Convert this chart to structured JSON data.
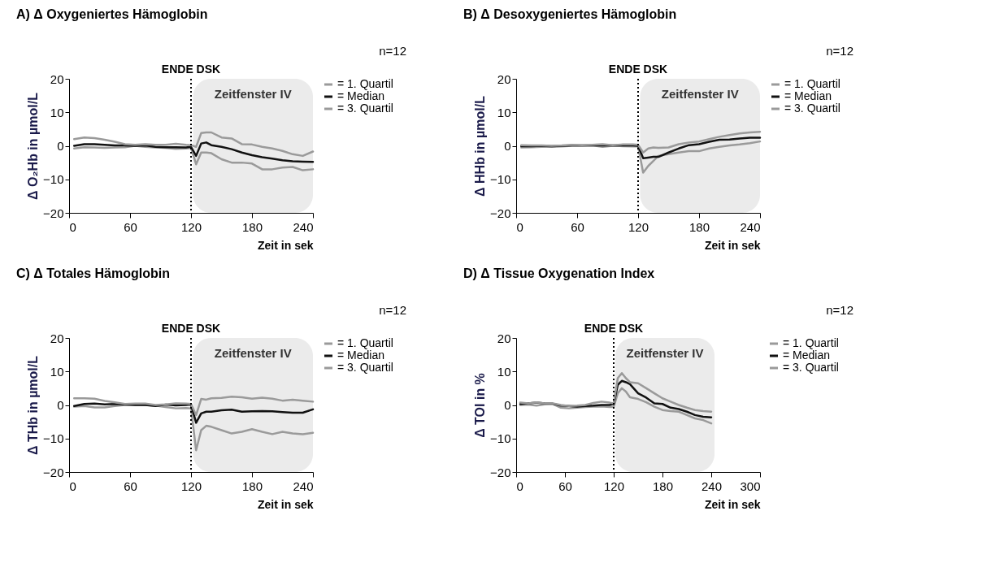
{
  "chart_data": [
    {
      "type": "line",
      "title": "A) Δ Oxygeniertes Hämoglobin",
      "xlabel": "Zeit in sek",
      "ylabel": "Δ O₂Hb in µmol/L",
      "annotations": [
        "n=12"
      ],
      "x": [
        5,
        15,
        25,
        35,
        45,
        55,
        65,
        75,
        85,
        95,
        105,
        115,
        120,
        125,
        130,
        135,
        140,
        150,
        160,
        170,
        180,
        190,
        200,
        210,
        220,
        230,
        240
      ],
      "xlim": [
        0,
        240
      ],
      "xticks": [
        0,
        60,
        120,
        180,
        240
      ],
      "ylim": [
        -20,
        20
      ],
      "yticks": [
        -20,
        -10,
        0,
        10,
        20
      ],
      "legend": "right",
      "ref_lines": [
        {
          "axis": "x",
          "value": 120,
          "label": "ENDE DSK",
          "color": "#000000",
          "line_style": "dotted"
        }
      ],
      "bands": [
        {
          "axis": "x",
          "from": 122,
          "to": 240,
          "label": "Zeitfenster IV",
          "color": "#ebebeb"
        }
      ],
      "series": [
        {
          "name": "= 1. Quartil",
          "color": "#9a9a9a",
          "values": [
            -0.8,
            -0.4,
            -0.5,
            -0.6,
            -0.5,
            -0.4,
            0,
            -0.3,
            -0.5,
            -0.6,
            -0.9,
            -0.8,
            -0.6,
            -5.5,
            -2,
            -2,
            -2.2,
            -4,
            -5,
            -5,
            -5.3,
            -7,
            -7,
            -6.5,
            -6.3,
            -7.3,
            -7
          ]
        },
        {
          "name": "= Median",
          "color": "#111111",
          "values": [
            0,
            0.5,
            0.5,
            0.3,
            0.1,
            0.1,
            0,
            0.1,
            -0.3,
            -0.4,
            -0.4,
            -0.5,
            -0.3,
            -3,
            0.7,
            1,
            0.2,
            -0.3,
            -1,
            -2,
            -2.8,
            -3.4,
            -3.8,
            -4.3,
            -4.6,
            -4.7,
            -4.8
          ]
        },
        {
          "name": "= 3. Quartil",
          "color": "#9a9a9a",
          "values": [
            2,
            2.5,
            2.3,
            1.8,
            1.2,
            0.5,
            0.3,
            0.5,
            0.3,
            0.3,
            0.6,
            0.3,
            0.2,
            -0.3,
            3.8,
            4,
            4,
            2.5,
            2.2,
            0.5,
            0.4,
            -0.3,
            -0.8,
            -1.5,
            -2.5,
            -3,
            -1.7
          ]
        }
      ]
    },
    {
      "type": "line",
      "title": "B) Δ Desoxygeniertes Hämoglobin",
      "xlabel": "Zeit in sek",
      "ylabel": "Δ HHb in µmol/L",
      "annotations": [
        "n=12"
      ],
      "x": [
        5,
        15,
        25,
        35,
        45,
        55,
        65,
        75,
        85,
        95,
        105,
        115,
        120,
        125,
        130,
        135,
        140,
        150,
        160,
        170,
        180,
        190,
        200,
        210,
        220,
        230,
        240
      ],
      "xlim": [
        0,
        240
      ],
      "xticks": [
        0,
        60,
        120,
        180,
        240
      ],
      "ylim": [
        -20,
        20
      ],
      "yticks": [
        -20,
        -10,
        0,
        10,
        20
      ],
      "legend": "right",
      "ref_lines": [
        {
          "axis": "x",
          "value": 120,
          "label": "ENDE DSK",
          "color": "#000000",
          "line_style": "dotted"
        }
      ],
      "bands": [
        {
          "axis": "x",
          "from": 122,
          "to": 240,
          "label": "Zeitfenster IV",
          "color": "#ebebeb"
        }
      ],
      "series": [
        {
          "name": "= 1. Quartil",
          "color": "#9a9a9a",
          "values": [
            -0.5,
            -0.4,
            -0.3,
            -0.3,
            -0.2,
            0,
            0,
            0.1,
            -0.3,
            0,
            -0.1,
            -0.2,
            -0.2,
            -8,
            -6,
            -4.5,
            -3,
            -2.5,
            -2,
            -1.6,
            -1.6,
            -0.8,
            -0.3,
            0.1,
            0.4,
            0.8,
            1.3
          ]
        },
        {
          "name": "= Median",
          "color": "#111111",
          "values": [
            -0.1,
            -0.1,
            0,
            -0.1,
            0,
            0.1,
            0.1,
            0.1,
            0.1,
            0.1,
            0.1,
            0.1,
            0,
            -3.7,
            -3.5,
            -3.3,
            -3.3,
            -2,
            -0.8,
            0.2,
            0.5,
            1.2,
            1.8,
            1.9,
            2.2,
            2.4,
            2.4
          ]
        },
        {
          "name": "= 3. Quartil",
          "color": "#9a9a9a",
          "values": [
            0.2,
            0.1,
            0.1,
            0,
            0.1,
            0.3,
            0.2,
            0.3,
            0.5,
            0.2,
            0.4,
            0.4,
            0.3,
            -2,
            -0.8,
            -0.5,
            -0.6,
            -0.5,
            0.5,
            1,
            1.3,
            2,
            2.7,
            3.2,
            3.7,
            4,
            4.2
          ]
        }
      ]
    },
    {
      "type": "line",
      "title": "C) Δ Totales Hämoglobin",
      "xlabel": "Zeit in sek",
      "ylabel": "Δ THb in µmol/L",
      "annotations": [
        "n=12"
      ],
      "x": [
        5,
        15,
        25,
        35,
        45,
        55,
        65,
        75,
        85,
        95,
        105,
        115,
        120,
        125,
        130,
        135,
        140,
        150,
        160,
        170,
        180,
        190,
        200,
        210,
        220,
        230,
        240
      ],
      "xlim": [
        0,
        240
      ],
      "xticks": [
        0,
        60,
        120,
        180,
        240
      ],
      "ylim": [
        -20,
        20
      ],
      "yticks": [
        -20,
        -10,
        0,
        10,
        20
      ],
      "legend": "right",
      "ref_lines": [
        {
          "axis": "x",
          "value": 120,
          "label": "ENDE DSK",
          "color": "#000000",
          "line_style": "dotted"
        }
      ],
      "bands": [
        {
          "axis": "x",
          "from": 122,
          "to": 240,
          "label": "Zeitfenster IV",
          "color": "#ebebeb"
        }
      ],
      "series": [
        {
          "name": "= 1. Quartil",
          "color": "#9a9a9a",
          "values": [
            -0.5,
            -0.3,
            -0.7,
            -0.7,
            -0.3,
            0,
            0.1,
            0,
            -0.2,
            -0.6,
            -1,
            -0.9,
            -1,
            -13.5,
            -7.5,
            -6.2,
            -6.5,
            -7.5,
            -8.5,
            -8,
            -7.2,
            -8,
            -8.7,
            -8,
            -8.5,
            -8.7,
            -8.3
          ]
        },
        {
          "name": "= Median",
          "color": "#111111",
          "values": [
            -0.3,
            0.3,
            0.4,
            0.2,
            0.3,
            0.1,
            0,
            0,
            -0.3,
            0.1,
            -0.1,
            0,
            0.1,
            -5.3,
            -2.5,
            -2,
            -2,
            -1.6,
            -1.4,
            -2,
            -1.9,
            -1.8,
            -1.9,
            -2.1,
            -2.3,
            -2.3,
            -1.3
          ]
        },
        {
          "name": "= 3. Quartil",
          "color": "#9a9a9a",
          "values": [
            2,
            2,
            1.9,
            1.2,
            0.8,
            0.3,
            0.4,
            0.4,
            0,
            0.2,
            0.5,
            0.4,
            0.3,
            -3,
            1.8,
            1.6,
            2,
            2.1,
            2.5,
            2.3,
            1.9,
            2.2,
            1.9,
            1.3,
            1.6,
            1.3,
            1
          ]
        }
      ]
    },
    {
      "type": "line",
      "title": "D) Δ Tissue Oxygenation Index",
      "xlabel": "Zeit in sek",
      "ylabel": "Δ TOI in %",
      "annotations": [
        "n=12"
      ],
      "x": [
        5,
        15,
        25,
        35,
        45,
        55,
        65,
        75,
        85,
        95,
        105,
        115,
        120,
        125,
        130,
        135,
        140,
        150,
        160,
        170,
        180,
        190,
        200,
        210,
        220,
        230,
        240
      ],
      "xlim": [
        0,
        300
      ],
      "xticks": [
        0,
        60,
        120,
        180,
        240,
        300
      ],
      "ylim": [
        -20,
        20
      ],
      "yticks": [
        -20,
        -10,
        0,
        10,
        20
      ],
      "legend": "right",
      "ref_lines": [
        {
          "axis": "x",
          "value": 120,
          "label": "ENDE DSK",
          "color": "#000000",
          "line_style": "dotted"
        }
      ],
      "bands": [
        {
          "axis": "x",
          "from": 122,
          "to": 244,
          "label": "Zeitfenster IV",
          "color": "#ebebeb"
        }
      ],
      "series": [
        {
          "name": "= 1. Quartil",
          "color": "#9a9a9a",
          "values": [
            0,
            0.1,
            -0.2,
            0.2,
            0.3,
            -0.8,
            -1,
            -0.8,
            -0.6,
            -0.5,
            -0.4,
            -0.6,
            -0.6,
            3.5,
            5,
            4,
            2.3,
            1.8,
            0.8,
            -0.5,
            -1.5,
            -1.8,
            -2,
            -3,
            -4,
            -4.5,
            -5.5
          ]
        },
        {
          "name": "= Median",
          "color": "#111111",
          "values": [
            0.3,
            0.5,
            0.7,
            0.5,
            0.4,
            -0.2,
            -0.3,
            -0.5,
            -0.3,
            -0.2,
            0,
            0,
            0.3,
            6,
            7.2,
            6.8,
            6.2,
            3.5,
            2.2,
            0.5,
            0.3,
            -0.8,
            -1.2,
            -2,
            -3,
            -3.5,
            -3.7
          ]
        },
        {
          "name": "= 3. Quartil",
          "color": "#9a9a9a",
          "values": [
            0.7,
            0.5,
            0.8,
            0.5,
            0.5,
            0,
            -0.3,
            -0.2,
            0,
            0.6,
            1,
            0.7,
            0.5,
            8,
            9.5,
            8,
            6.8,
            6.5,
            5,
            3.5,
            2,
            1,
            0,
            -0.8,
            -1.5,
            -1.8,
            -2
          ]
        }
      ]
    }
  ]
}
